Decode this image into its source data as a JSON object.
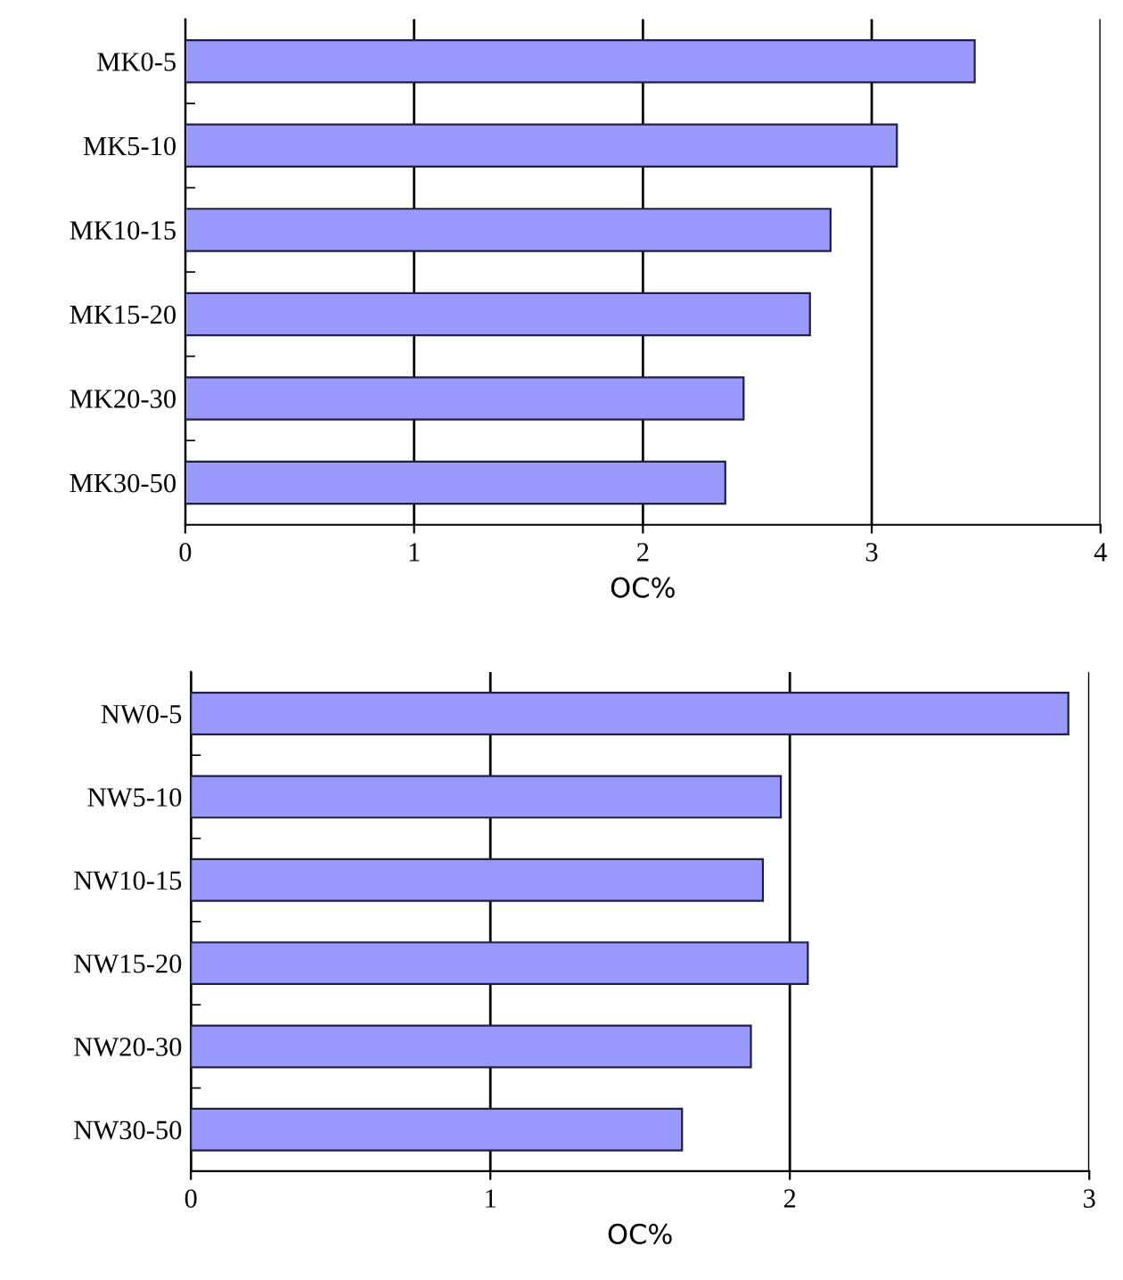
{
  "chart_data": [
    {
      "type": "bar",
      "orientation": "horizontal",
      "xlabel": "OC%",
      "categories": [
        "MK0-5",
        "MK5-10",
        "MK10-15",
        "MK15-20",
        "MK20-30",
        "MK30-50"
      ],
      "values": [
        3.45,
        3.11,
        2.82,
        2.73,
        2.44,
        2.36
      ],
      "color": "#9999ff",
      "xlim": [
        0,
        4
      ],
      "xticks": [
        0,
        1,
        2,
        3,
        4
      ],
      "grid": "x"
    },
    {
      "type": "bar",
      "orientation": "horizontal",
      "xlabel": "OC%",
      "categories": [
        "NW0-5",
        "NW5-10",
        "NW10-15",
        "NW15-20",
        "NW20-30",
        "NW30-50"
      ],
      "values": [
        2.93,
        1.97,
        1.91,
        2.06,
        1.87,
        1.64
      ],
      "color": "#9999ff",
      "xlim": [
        0,
        3
      ],
      "xticks": [
        0,
        1,
        2,
        3
      ],
      "grid": "x"
    }
  ]
}
